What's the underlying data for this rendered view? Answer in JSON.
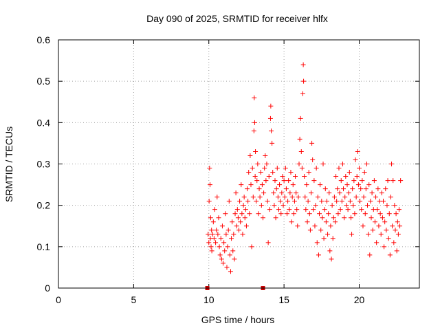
{
  "chart_data": {
    "type": "scatter",
    "title": "Day 090 of 2025, SRMTID for receiver hlfx",
    "xlabel": "GPS time / hours",
    "ylabel": "SRMTID / TECUs",
    "xlim": [
      0,
      24
    ],
    "ylim": [
      0,
      0.6
    ],
    "x_ticks": [
      "0",
      "5",
      "10",
      "15",
      "20"
    ],
    "y_ticks": [
      "0",
      "0.1",
      "0.2",
      "0.3",
      "0.4",
      "0.5",
      "0.6"
    ],
    "grid": true,
    "marker": "plus",
    "color": "#ff0000",
    "zero_markers_x": [
      9.9,
      13.6
    ],
    "series": [
      {
        "name": "SRMTID",
        "points": [
          [
            9.95,
            0.13
          ],
          [
            10.0,
            0.11
          ],
          [
            10.02,
            0.21
          ],
          [
            10.05,
            0.29
          ],
          [
            10.08,
            0.25
          ],
          [
            10.1,
            0.12
          ],
          [
            10.12,
            0.17
          ],
          [
            10.15,
            0.1
          ],
          [
            10.18,
            0.14
          ],
          [
            10.2,
            0.09
          ],
          [
            10.25,
            0.13
          ],
          [
            10.3,
            0.16
          ],
          [
            10.35,
            0.12
          ],
          [
            10.4,
            0.19
          ],
          [
            10.45,
            0.11
          ],
          [
            10.5,
            0.14
          ],
          [
            10.55,
            0.22
          ],
          [
            10.6,
            0.13
          ],
          [
            10.65,
            0.17
          ],
          [
            10.7,
            0.1
          ],
          [
            10.75,
            0.08
          ],
          [
            10.8,
            0.12
          ],
          [
            10.85,
            0.07
          ],
          [
            10.9,
            0.15
          ],
          [
            10.95,
            0.06
          ],
          [
            11.0,
            0.11
          ],
          [
            11.05,
            0.09
          ],
          [
            11.1,
            0.18
          ],
          [
            11.15,
            0.13
          ],
          [
            11.2,
            0.05
          ],
          [
            11.25,
            0.1
          ],
          [
            11.3,
            0.14
          ],
          [
            11.35,
            0.21
          ],
          [
            11.4,
            0.08
          ],
          [
            11.45,
            0.04
          ],
          [
            11.5,
            0.12
          ],
          [
            11.55,
            0.16
          ],
          [
            11.6,
            0.09
          ],
          [
            11.65,
            0.13
          ],
          [
            11.7,
            0.07
          ],
          [
            11.75,
            0.18
          ],
          [
            11.8,
            0.23
          ],
          [
            11.85,
            0.15
          ],
          [
            11.9,
            0.19
          ],
          [
            11.95,
            0.17
          ],
          [
            12.0,
            0.14
          ],
          [
            12.05,
            0.21
          ],
          [
            12.1,
            0.16
          ],
          [
            12.15,
            0.25
          ],
          [
            12.2,
            0.18
          ],
          [
            12.25,
            0.13
          ],
          [
            12.3,
            0.2
          ],
          [
            12.35,
            0.22
          ],
          [
            12.4,
            0.17
          ],
          [
            12.45,
            0.19
          ],
          [
            12.5,
            0.15
          ],
          [
            12.55,
            0.24
          ],
          [
            12.6,
            0.21
          ],
          [
            12.65,
            0.28
          ],
          [
            12.7,
            0.18
          ],
          [
            12.75,
            0.32
          ],
          [
            12.8,
            0.25
          ],
          [
            12.85,
            0.1
          ],
          [
            12.9,
            0.29
          ],
          [
            12.95,
            0.22
          ],
          [
            13.0,
            0.38
          ],
          [
            13.02,
            0.46
          ],
          [
            13.05,
            0.4
          ],
          [
            13.08,
            0.27
          ],
          [
            13.1,
            0.33
          ],
          [
            13.15,
            0.21
          ],
          [
            13.2,
            0.26
          ],
          [
            13.25,
            0.3
          ],
          [
            13.3,
            0.18
          ],
          [
            13.35,
            0.24
          ],
          [
            13.4,
            0.22
          ],
          [
            13.45,
            0.28
          ],
          [
            13.5,
            0.2
          ],
          [
            13.55,
            0.25
          ],
          [
            13.6,
            0.17
          ],
          [
            13.65,
            0.23
          ],
          [
            13.7,
            0.29
          ],
          [
            13.75,
            0.32
          ],
          [
            13.8,
            0.26
          ],
          [
            13.85,
            0.3
          ],
          [
            13.9,
            0.21
          ],
          [
            13.95,
            0.11
          ],
          [
            14.0,
            0.27
          ],
          [
            14.05,
            0.19
          ],
          [
            14.1,
            0.41
          ],
          [
            14.12,
            0.44
          ],
          [
            14.15,
            0.38
          ],
          [
            14.2,
            0.35
          ],
          [
            14.25,
            0.28
          ],
          [
            14.3,
            0.23
          ],
          [
            14.35,
            0.2
          ],
          [
            14.4,
            0.26
          ],
          [
            14.45,
            0.17
          ],
          [
            14.5,
            0.24
          ],
          [
            14.55,
            0.29
          ],
          [
            14.6,
            0.22
          ],
          [
            14.65,
            0.19
          ],
          [
            14.7,
            0.25
          ],
          [
            14.75,
            0.21
          ],
          [
            14.8,
            0.18
          ],
          [
            14.85,
            0.23
          ],
          [
            14.9,
            0.27
          ],
          [
            14.95,
            0.2
          ],
          [
            15.0,
            0.26
          ],
          [
            15.05,
            0.22
          ],
          [
            15.1,
            0.29
          ],
          [
            15.15,
            0.24
          ],
          [
            15.2,
            0.18
          ],
          [
            15.25,
            0.21
          ],
          [
            15.3,
            0.26
          ],
          [
            15.35,
            0.19
          ],
          [
            15.4,
            0.23
          ],
          [
            15.45,
            0.28
          ],
          [
            15.5,
            0.16
          ],
          [
            15.55,
            0.22
          ],
          [
            15.6,
            0.25
          ],
          [
            15.65,
            0.18
          ],
          [
            15.7,
            0.21
          ],
          [
            15.75,
            0.27
          ],
          [
            15.8,
            0.23
          ],
          [
            15.85,
            0.19
          ],
          [
            15.9,
            0.15
          ],
          [
            15.95,
            0.22
          ],
          [
            16.0,
            0.3
          ],
          [
            16.05,
            0.36
          ],
          [
            16.1,
            0.41
          ],
          [
            16.15,
            0.33
          ],
          [
            16.2,
            0.29
          ],
          [
            16.25,
            0.47
          ],
          [
            16.28,
            0.54
          ],
          [
            16.3,
            0.5
          ],
          [
            16.35,
            0.27
          ],
          [
            16.4,
            0.22
          ],
          [
            16.45,
            0.19
          ],
          [
            16.5,
            0.25
          ],
          [
            16.55,
            0.16
          ],
          [
            16.6,
            0.21
          ],
          [
            16.65,
            0.28
          ],
          [
            16.7,
            0.18
          ],
          [
            16.75,
            0.14
          ],
          [
            16.8,
            0.23
          ],
          [
            16.85,
            0.35
          ],
          [
            16.9,
            0.31
          ],
          [
            16.95,
            0.19
          ],
          [
            17.0,
            0.26
          ],
          [
            17.05,
            0.15
          ],
          [
            17.1,
            0.2
          ],
          [
            17.15,
            0.29
          ],
          [
            17.2,
            0.11
          ],
          [
            17.25,
            0.22
          ],
          [
            17.3,
            0.08
          ],
          [
            17.35,
            0.18
          ],
          [
            17.4,
            0.25
          ],
          [
            17.45,
            0.14
          ],
          [
            17.5,
            0.21
          ],
          [
            17.55,
            0.17
          ],
          [
            17.6,
            0.3
          ],
          [
            17.65,
            0.12
          ],
          [
            17.7,
            0.19
          ],
          [
            17.75,
            0.24
          ],
          [
            17.8,
            0.16
          ],
          [
            17.85,
            0.21
          ],
          [
            17.9,
            0.13
          ],
          [
            17.95,
            0.18
          ],
          [
            18.0,
            0.23
          ],
          [
            18.05,
            0.09
          ],
          [
            18.1,
            0.15
          ],
          [
            18.15,
            0.07
          ],
          [
            18.2,
            0.2
          ],
          [
            18.25,
            0.12
          ],
          [
            18.3,
            0.17
          ],
          [
            18.35,
            0.22
          ],
          [
            18.4,
            0.16
          ],
          [
            18.45,
            0.27
          ],
          [
            18.5,
            0.21
          ],
          [
            18.55,
            0.24
          ],
          [
            18.6,
            0.18
          ],
          [
            18.65,
            0.29
          ],
          [
            18.7,
            0.23
          ],
          [
            18.75,
            0.19
          ],
          [
            18.8,
            0.26
          ],
          [
            18.85,
            0.21
          ],
          [
            18.9,
            0.3
          ],
          [
            18.95,
            0.24
          ],
          [
            19.0,
            0.17
          ],
          [
            19.05,
            0.22
          ],
          [
            19.1,
            0.27
          ],
          [
            19.15,
            0.2
          ],
          [
            19.2,
            0.25
          ],
          [
            19.25,
            0.19
          ],
          [
            19.3,
            0.23
          ],
          [
            19.35,
            0.28
          ],
          [
            19.4,
            0.21
          ],
          [
            19.45,
            0.17
          ],
          [
            19.5,
            0.13
          ],
          [
            19.55,
            0.24
          ],
          [
            19.6,
            0.2
          ],
          [
            19.65,
            0.26
          ],
          [
            19.7,
            0.18
          ],
          [
            19.75,
            0.31
          ],
          [
            19.8,
            0.22
          ],
          [
            19.85,
            0.27
          ],
          [
            19.9,
            0.33
          ],
          [
            19.95,
            0.25
          ],
          [
            20.0,
            0.29
          ],
          [
            20.05,
            0.21
          ],
          [
            20.1,
            0.24
          ],
          [
            20.15,
            0.19
          ],
          [
            20.2,
            0.26
          ],
          [
            20.25,
            0.15
          ],
          [
            20.3,
            0.22
          ],
          [
            20.35,
            0.28
          ],
          [
            20.4,
            0.18
          ],
          [
            20.45,
            0.24
          ],
          [
            20.5,
            0.3
          ],
          [
            20.55,
            0.2
          ],
          [
            20.6,
            0.13
          ],
          [
            20.65,
            0.25
          ],
          [
            20.7,
            0.08
          ],
          [
            20.75,
            0.21
          ],
          [
            20.8,
            0.17
          ],
          [
            20.85,
            0.23
          ],
          [
            20.9,
            0.14
          ],
          [
            20.95,
            0.19
          ],
          [
            21.0,
            0.26
          ],
          [
            21.05,
            0.16
          ],
          [
            21.1,
            0.22
          ],
          [
            21.15,
            0.11
          ],
          [
            21.2,
            0.19
          ],
          [
            21.25,
            0.24
          ],
          [
            21.3,
            0.15
          ],
          [
            21.35,
            0.21
          ],
          [
            21.4,
            0.18
          ],
          [
            21.45,
            0.13
          ],
          [
            21.5,
            0.23
          ],
          [
            21.55,
            0.17
          ],
          [
            21.6,
            0.21
          ],
          [
            21.65,
            0.1
          ],
          [
            21.7,
            0.16
          ],
          [
            21.75,
            0.24
          ],
          [
            21.8,
            0.14
          ],
          [
            21.85,
            0.2
          ],
          [
            21.9,
            0.26
          ],
          [
            21.95,
            0.12
          ],
          [
            22.0,
            0.18
          ],
          [
            22.05,
            0.08
          ],
          [
            22.1,
            0.22
          ],
          [
            22.15,
            0.3
          ],
          [
            22.2,
            0.15
          ],
          [
            22.25,
            0.26
          ],
          [
            22.3,
            0.11
          ],
          [
            22.35,
            0.2
          ],
          [
            22.4,
            0.14
          ],
          [
            22.45,
            0.18
          ],
          [
            22.5,
            0.09
          ],
          [
            22.55,
            0.16
          ],
          [
            22.6,
            0.13
          ],
          [
            22.65,
            0.19
          ],
          [
            22.7,
            0.15
          ],
          [
            22.75,
            0.26
          ]
        ]
      }
    ]
  }
}
